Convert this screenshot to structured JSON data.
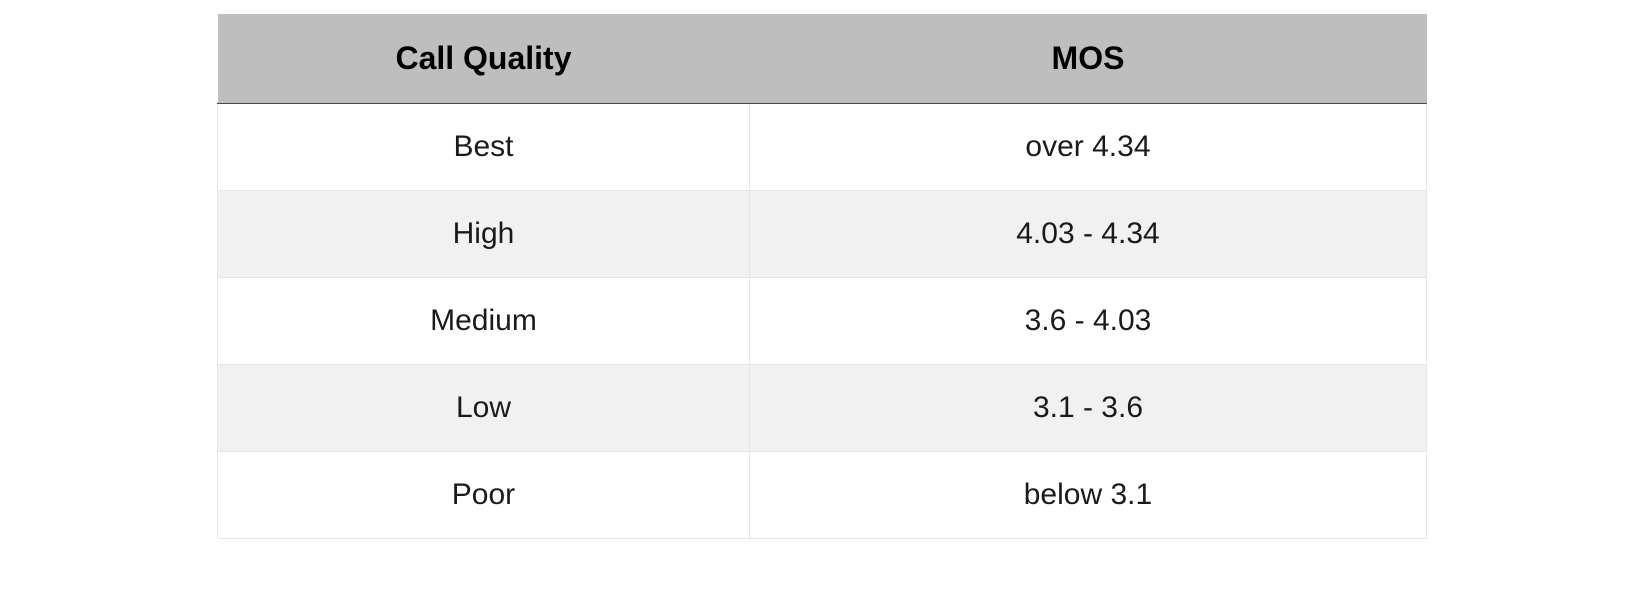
{
  "table": {
    "type": "table",
    "columns": [
      "Call Quality",
      "MOS"
    ],
    "column_widths_pct": [
      44,
      56
    ],
    "header_bg": "#bebebe",
    "header_fg": "#000000",
    "header_fontsize": 32,
    "header_fontweight": 700,
    "header_border_bottom": "#4a4a4a",
    "body_fontsize": 30,
    "body_fg": "#1a1a1a",
    "row_bg": "#ffffff",
    "row_alt_bg": "#f1f1f1",
    "border_color": "#e6e6e6",
    "rows": [
      {
        "quality": "Best",
        "mos": "over 4.34"
      },
      {
        "quality": "High",
        "mos": "4.03 - 4.34"
      },
      {
        "quality": "Medium",
        "mos": "3.6 - 4.03"
      },
      {
        "quality": "Low",
        "mos": "3.1 - 3.6"
      },
      {
        "quality": "Poor",
        "mos": "below 3.1"
      }
    ]
  }
}
